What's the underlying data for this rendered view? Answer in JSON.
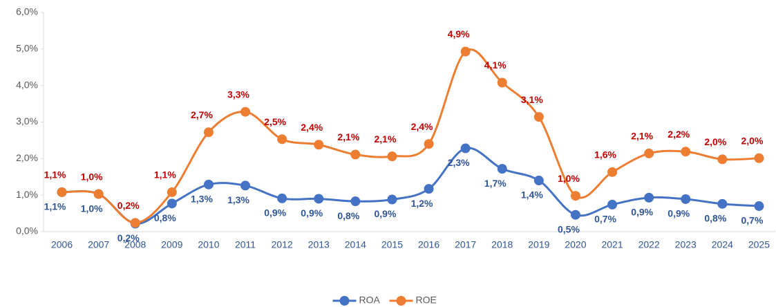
{
  "chart_data": {
    "type": "line",
    "categories": [
      "2006",
      "2007",
      "2008",
      "2009",
      "2010",
      "2011",
      "2012",
      "2013",
      "2014",
      "2015",
      "2016",
      "2017",
      "2018",
      "2019",
      "2020",
      "2021",
      "2022",
      "2023",
      "2024",
      "2025"
    ],
    "series": [
      {
        "name": "ROA",
        "color": "#4472c4",
        "label_color": "#2f5597",
        "values": [
          1.08,
          1.03,
          0.22,
          0.77,
          1.29,
          1.26,
          0.91,
          0.9,
          0.83,
          0.88,
          1.17,
          2.28,
          1.72,
          1.4,
          0.46,
          0.74,
          0.93,
          0.89,
          0.76,
          0.7
        ],
        "value_labels": [
          "1,1%",
          "1,0%",
          "0,2%",
          "0,8%",
          "1,3%",
          "1,3%",
          "0,9%",
          "0,9%",
          "0,8%",
          "0,9%",
          "1,2%",
          "2,3%",
          "1,7%",
          "1,4%",
          "0,5%",
          "0,7%",
          "0,9%",
          "0,9%",
          "0,8%",
          "0,7%"
        ]
      },
      {
        "name": "ROE",
        "color": "#ed7d31",
        "label_color": "#c00000",
        "values": [
          1.08,
          1.03,
          0.24,
          1.08,
          2.72,
          3.28,
          2.53,
          2.38,
          2.11,
          2.06,
          2.4,
          4.93,
          4.08,
          3.14,
          0.98,
          1.63,
          2.14,
          2.19,
          1.98,
          2.01
        ],
        "value_labels": [
          "1,1%",
          "1,0%",
          "0,2%",
          "1,1%",
          "2,7%",
          "3,3%",
          "2,5%",
          "2,4%",
          "2,1%",
          "2,1%",
          "2,4%",
          "4,9%",
          "4,1%",
          "3,1%",
          "1,0%",
          "1,6%",
          "2,1%",
          "2,2%",
          "2,0%",
          "2,0%"
        ]
      }
    ],
    "ylim": [
      0,
      6
    ],
    "yticks": [
      {
        "value": 0,
        "label": "0,0%"
      },
      {
        "value": 1,
        "label": "1,0%"
      },
      {
        "value": 2,
        "label": "2,0%"
      },
      {
        "value": 3,
        "label": "3,0%"
      },
      {
        "value": 4,
        "label": "4,0%"
      },
      {
        "value": 5,
        "label": "5,0%"
      },
      {
        "value": 6,
        "label": "6,0%"
      }
    ],
    "grid": false,
    "smooth": true,
    "legend": "bottom"
  }
}
